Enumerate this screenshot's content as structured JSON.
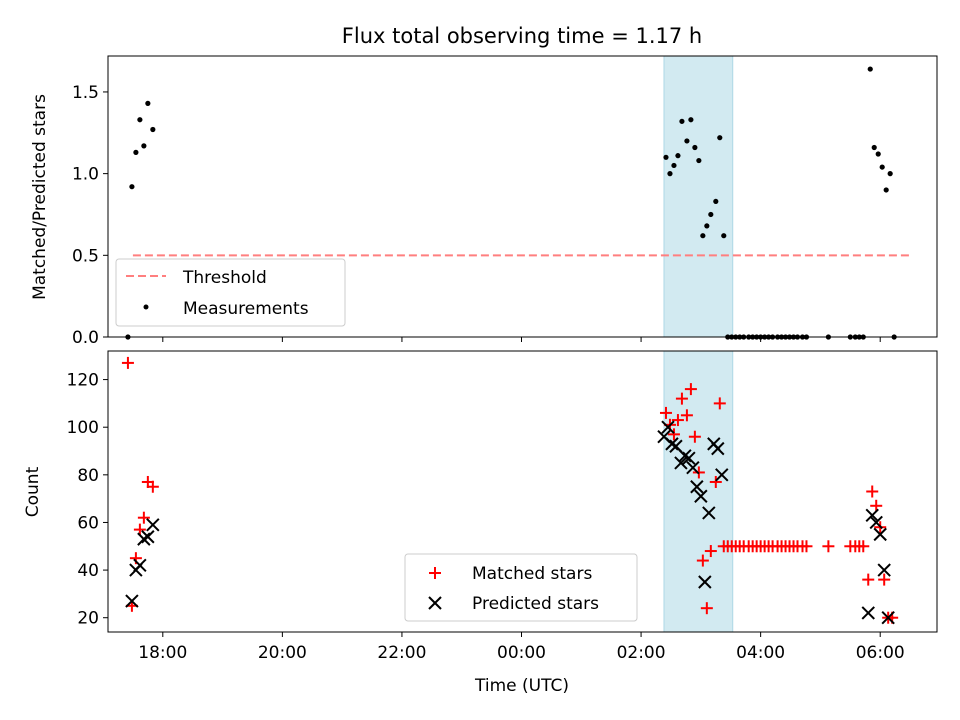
{
  "chart_data": [
    {
      "type": "scatter",
      "title": "Flux total observing time = 1.17 h",
      "ylabel": "Matched/Predicted stars",
      "ylim": [
        0,
        1.72
      ],
      "xlim": [
        "17:05",
        "06:57"
      ],
      "yticks": [
        "0.0",
        "0.5",
        "1.0",
        "1.5"
      ],
      "shaded_span": [
        "02:23",
        "03:32"
      ],
      "threshold": {
        "value": 0.5,
        "x_range": [
          "17:30",
          "06:30"
        ]
      },
      "legend": {
        "placement": "lower-left",
        "entries": [
          "Threshold",
          "Measurements"
        ]
      },
      "series": [
        {
          "name": "Measurements",
          "points": [
            [
              "17:25",
              0.0
            ],
            [
              "17:29",
              0.92
            ],
            [
              "17:33",
              1.13
            ],
            [
              "17:37",
              1.33
            ],
            [
              "17:41",
              1.17
            ],
            [
              "17:45",
              1.43
            ],
            [
              "17:50",
              1.27
            ],
            [
              "02:25",
              1.1
            ],
            [
              "02:29",
              1.0
            ],
            [
              "02:33",
              1.05
            ],
            [
              "02:37",
              1.11
            ],
            [
              "02:41",
              1.32
            ],
            [
              "02:46",
              1.2
            ],
            [
              "02:50",
              1.33
            ],
            [
              "02:54",
              1.16
            ],
            [
              "02:58",
              1.08
            ],
            [
              "03:02",
              0.62
            ],
            [
              "03:06",
              0.68
            ],
            [
              "03:10",
              0.75
            ],
            [
              "03:15",
              0.83
            ],
            [
              "03:19",
              1.22
            ],
            [
              "03:23",
              0.62
            ],
            [
              "03:27",
              0.0
            ],
            [
              "03:31",
              0.0
            ],
            [
              "03:35",
              0.0
            ],
            [
              "03:39",
              0.0
            ],
            [
              "03:43",
              0.0
            ],
            [
              "03:48",
              0.0
            ],
            [
              "03:52",
              0.0
            ],
            [
              "03:56",
              0.0
            ],
            [
              "04:00",
              0.0
            ],
            [
              "04:04",
              0.0
            ],
            [
              "04:08",
              0.0
            ],
            [
              "04:12",
              0.0
            ],
            [
              "04:17",
              0.0
            ],
            [
              "04:21",
              0.0
            ],
            [
              "04:25",
              0.0
            ],
            [
              "04:29",
              0.0
            ],
            [
              "04:33",
              0.0
            ],
            [
              "04:37",
              0.0
            ],
            [
              "04:42",
              0.0
            ],
            [
              "04:46",
              0.0
            ],
            [
              "05:08",
              0.0
            ],
            [
              "05:30",
              0.0
            ],
            [
              "05:35",
              0.0
            ],
            [
              "05:39",
              0.0
            ],
            [
              "05:43",
              0.0
            ],
            [
              "05:50",
              1.64
            ],
            [
              "05:54",
              1.16
            ],
            [
              "05:58",
              1.12
            ],
            [
              "06:02",
              1.04
            ],
            [
              "06:06",
              0.9
            ],
            [
              "06:10",
              1.0
            ],
            [
              "06:14",
              0.0
            ]
          ]
        }
      ]
    },
    {
      "type": "scatter",
      "xlabel": "Time (UTC)",
      "ylabel": "Count",
      "ylim": [
        14,
        132
      ],
      "xlim": [
        "17:05",
        "06:57"
      ],
      "yticks": [
        "20",
        "40",
        "60",
        "80",
        "100",
        "120"
      ],
      "xticks": [
        "18:00",
        "20:00",
        "22:00",
        "00:00",
        "02:00",
        "04:00",
        "06:00"
      ],
      "shaded_span": [
        "02:23",
        "03:32"
      ],
      "legend": {
        "placement": "lower-center",
        "entries": [
          "Matched stars",
          "Predicted stars"
        ]
      },
      "series": [
        {
          "name": "Matched stars",
          "color": "#ff0000",
          "points": [
            [
              "17:25",
              127
            ],
            [
              "17:29",
              25
            ],
            [
              "17:33",
              45
            ],
            [
              "17:37",
              57
            ],
            [
              "17:41",
              62
            ],
            [
              "17:45",
              77
            ],
            [
              "17:50",
              75
            ],
            [
              "02:25",
              106
            ],
            [
              "02:29",
              101
            ],
            [
              "02:33",
              97
            ],
            [
              "02:37",
              103
            ],
            [
              "02:41",
              112
            ],
            [
              "02:46",
              105
            ],
            [
              "02:50",
              116
            ],
            [
              "02:54",
              96
            ],
            [
              "02:58",
              81
            ],
            [
              "03:02",
              44
            ],
            [
              "03:06",
              24
            ],
            [
              "03:10",
              48
            ],
            [
              "03:15",
              77
            ],
            [
              "03:19",
              110
            ],
            [
              "03:23",
              50
            ],
            [
              "03:27",
              50
            ],
            [
              "03:31",
              50
            ],
            [
              "03:35",
              50
            ],
            [
              "03:39",
              50
            ],
            [
              "03:43",
              50
            ],
            [
              "03:48",
              50
            ],
            [
              "03:52",
              50
            ],
            [
              "03:56",
              50
            ],
            [
              "04:00",
              50
            ],
            [
              "04:04",
              50
            ],
            [
              "04:08",
              50
            ],
            [
              "04:12",
              50
            ],
            [
              "04:17",
              50
            ],
            [
              "04:21",
              50
            ],
            [
              "04:25",
              50
            ],
            [
              "04:29",
              50
            ],
            [
              "04:33",
              50
            ],
            [
              "04:37",
              50
            ],
            [
              "04:42",
              50
            ],
            [
              "04:46",
              50
            ],
            [
              "05:08",
              50
            ],
            [
              "05:30",
              50
            ],
            [
              "05:35",
              50
            ],
            [
              "05:39",
              50
            ],
            [
              "05:43",
              50
            ],
            [
              "05:48",
              36
            ],
            [
              "05:52",
              73
            ],
            [
              "05:56",
              67
            ],
            [
              "06:00",
              58
            ],
            [
              "06:04",
              36
            ],
            [
              "06:08",
              20
            ],
            [
              "06:12",
              20
            ]
          ]
        },
        {
          "name": "Predicted stars",
          "color": "#000000",
          "points": [
            [
              "17:29",
              27
            ],
            [
              "17:33",
              40
            ],
            [
              "17:37",
              42
            ],
            [
              "17:41",
              53
            ],
            [
              "17:45",
              54
            ],
            [
              "17:50",
              59
            ],
            [
              "02:23",
              96
            ],
            [
              "02:27",
              100
            ],
            [
              "02:31",
              93
            ],
            [
              "02:35",
              92
            ],
            [
              "02:40",
              85
            ],
            [
              "02:44",
              88
            ],
            [
              "02:48",
              87
            ],
            [
              "02:52",
              83
            ],
            [
              "02:56",
              75
            ],
            [
              "03:00",
              71
            ],
            [
              "03:04",
              35
            ],
            [
              "03:08",
              64
            ],
            [
              "03:13",
              93
            ],
            [
              "03:17",
              91
            ],
            [
              "03:21",
              80
            ],
            [
              "05:48",
              22
            ],
            [
              "05:52",
              63
            ],
            [
              "05:56",
              60
            ],
            [
              "06:00",
              55
            ],
            [
              "06:04",
              40
            ],
            [
              "06:08",
              20
            ]
          ]
        }
      ]
    }
  ],
  "colors": {
    "span": "#add8e6",
    "threshold": "#ff7f7f",
    "matched": "#ff0000",
    "predicted": "#000000",
    "measurements": "#000000"
  }
}
